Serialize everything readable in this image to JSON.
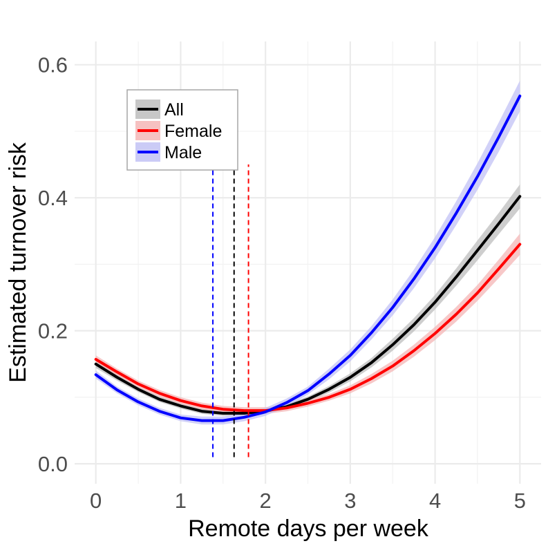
{
  "chart_data": {
    "type": "line",
    "xlabel": "Remote days per week",
    "ylabel": "Estimated turnover risk",
    "xlim": [
      -0.25,
      5.25
    ],
    "ylim": [
      -0.03,
      0.635
    ],
    "x_ticks": [
      0,
      1,
      2,
      3,
      4,
      5
    ],
    "x_tick_labels": [
      "0",
      "1",
      "2",
      "3",
      "4",
      "5"
    ],
    "y_ticks": [
      0.0,
      0.2,
      0.4,
      0.6
    ],
    "y_tick_labels": [
      "0.0",
      "0.2",
      "0.4",
      "0.6"
    ],
    "grid": true,
    "legend_position": "top-left",
    "x": [
      0,
      0.25,
      0.5,
      0.75,
      1,
      1.25,
      1.5,
      1.75,
      2,
      2.25,
      2.5,
      2.75,
      3,
      3.25,
      3.5,
      3.75,
      4,
      4.25,
      4.5,
      4.75,
      5
    ],
    "series": [
      {
        "name": "All",
        "color": "#000000",
        "band_color": "#bdbdbd",
        "values": [
          0.15,
          0.13,
          0.112,
          0.097,
          0.087,
          0.079,
          0.076,
          0.076,
          0.079,
          0.086,
          0.097,
          0.112,
          0.13,
          0.152,
          0.179,
          0.209,
          0.243,
          0.281,
          0.321,
          0.361,
          0.402
        ],
        "lower": [
          0.144,
          0.125,
          0.108,
          0.093,
          0.083,
          0.075,
          0.072,
          0.072,
          0.075,
          0.082,
          0.093,
          0.107,
          0.124,
          0.145,
          0.17,
          0.199,
          0.232,
          0.268,
          0.306,
          0.345,
          0.384
        ],
        "upper": [
          0.156,
          0.135,
          0.116,
          0.101,
          0.091,
          0.083,
          0.08,
          0.08,
          0.083,
          0.09,
          0.101,
          0.117,
          0.136,
          0.159,
          0.188,
          0.219,
          0.254,
          0.294,
          0.336,
          0.377,
          0.42
        ]
      },
      {
        "name": "Female",
        "color": "#ff0000",
        "band_color": "#f4b6b6",
        "values": [
          0.157,
          0.138,
          0.12,
          0.106,
          0.095,
          0.087,
          0.082,
          0.08,
          0.08,
          0.084,
          0.091,
          0.1,
          0.112,
          0.128,
          0.147,
          0.17,
          0.196,
          0.225,
          0.257,
          0.293,
          0.33
        ],
        "lower": [
          0.151,
          0.133,
          0.115,
          0.101,
          0.09,
          0.082,
          0.077,
          0.075,
          0.075,
          0.079,
          0.086,
          0.095,
          0.106,
          0.121,
          0.139,
          0.161,
          0.186,
          0.214,
          0.245,
          0.279,
          0.314
        ],
        "upper": [
          0.163,
          0.143,
          0.125,
          0.111,
          0.1,
          0.092,
          0.087,
          0.085,
          0.085,
          0.089,
          0.096,
          0.105,
          0.118,
          0.135,
          0.155,
          0.179,
          0.206,
          0.236,
          0.269,
          0.307,
          0.346
        ]
      },
      {
        "name": "Male",
        "color": "#0000ff",
        "band_color": "#c2c2f5",
        "values": [
          0.134,
          0.111,
          0.093,
          0.079,
          0.069,
          0.065,
          0.065,
          0.07,
          0.078,
          0.092,
          0.11,
          0.135,
          0.163,
          0.197,
          0.235,
          0.278,
          0.325,
          0.377,
          0.432,
          0.491,
          0.553
        ],
        "lower": [
          0.128,
          0.106,
          0.088,
          0.074,
          0.064,
          0.059,
          0.059,
          0.064,
          0.072,
          0.086,
          0.104,
          0.127,
          0.154,
          0.187,
          0.223,
          0.264,
          0.309,
          0.359,
          0.412,
          0.469,
          0.53
        ],
        "upper": [
          0.14,
          0.116,
          0.098,
          0.084,
          0.074,
          0.071,
          0.071,
          0.076,
          0.084,
          0.098,
          0.116,
          0.143,
          0.172,
          0.207,
          0.247,
          0.292,
          0.341,
          0.395,
          0.452,
          0.513,
          0.576
        ]
      }
    ],
    "vlines": [
      {
        "series": "Male",
        "x": 1.38,
        "color": "#0000ff",
        "y_from": 0.01,
        "y_to": 0.45
      },
      {
        "series": "All",
        "x": 1.63,
        "color": "#000000",
        "y_from": 0.01,
        "y_to": 0.45
      },
      {
        "series": "Female",
        "x": 1.8,
        "color": "#ff0000",
        "y_from": 0.01,
        "y_to": 0.45
      }
    ]
  }
}
